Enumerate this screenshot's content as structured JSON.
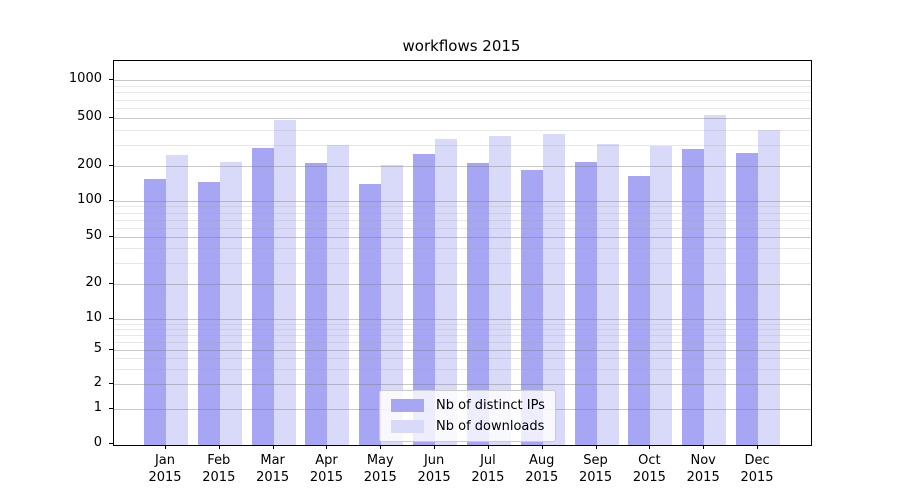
{
  "figure": {
    "title": "workflows 2015"
  },
  "chart_data": {
    "type": "bar",
    "title": "workflows 2015",
    "categories": [
      "Jan",
      "Feb",
      "Mar",
      "Apr",
      "May",
      "Jun",
      "Jul",
      "Aug",
      "Sep",
      "Oct",
      "Nov",
      "Dec"
    ],
    "x_tick_second_line": "2015",
    "series": [
      {
        "name": "Nb of distinct IPs",
        "color": "#a6a6f5",
        "values": [
          155,
          145,
          280,
          210,
          140,
          250,
          210,
          185,
          215,
          165,
          275,
          255
        ]
      },
      {
        "name": "Nb of downloads",
        "color": "#d9d9fa",
        "values": [
          245,
          215,
          480,
          300,
          205,
          335,
          355,
          370,
          305,
          295,
          525,
          400
        ]
      }
    ],
    "y_ticks": [
      0,
      1,
      2,
      5,
      10,
      20,
      50,
      100,
      200,
      500,
      1000
    ],
    "y_minor_gridlines": [
      3,
      4,
      6,
      7,
      8,
      9,
      30,
      40,
      60,
      70,
      80,
      90,
      300,
      400,
      600,
      700,
      800,
      900
    ],
    "y_scale": "symlog",
    "ylim": [
      0,
      1400
    ],
    "xlabel": "",
    "ylabel": "",
    "grid": true,
    "legend_position": "lower center"
  }
}
